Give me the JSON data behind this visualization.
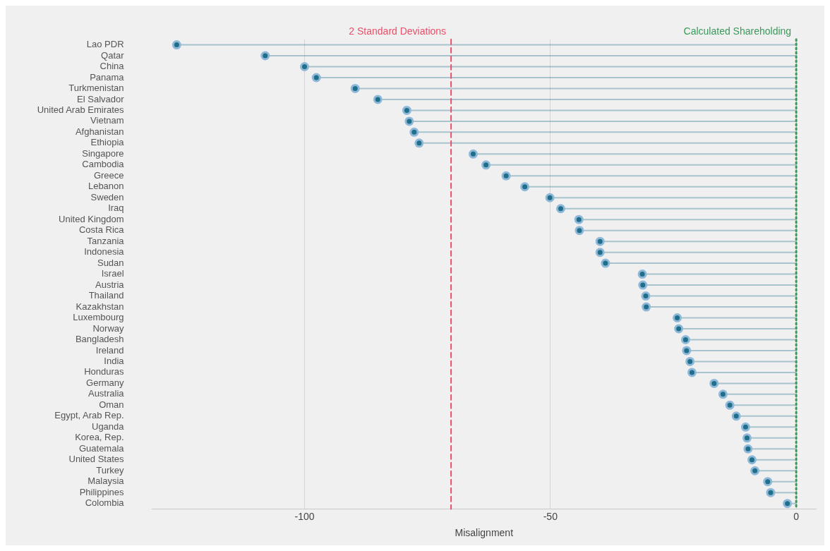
{
  "chart_data": {
    "type": "lollipop",
    "orientation": "horizontal",
    "xlabel": "Misalignment",
    "categories": [
      "Lao PDR",
      "Qatar",
      "China",
      "Panama",
      "Turkmenistan",
      "El Salvador",
      "United Arab Emirates",
      "Vietnam",
      "Afghanistan",
      "Ethiopia",
      "Singapore",
      "Cambodia",
      "Greece",
      "Lebanon",
      "Sweden",
      "Iraq",
      "United Kingdom",
      "Costa Rica",
      "Tanzania",
      "Indonesia",
      "Sudan",
      "Israel",
      "Austria",
      "Thailand",
      "Kazakhstan",
      "Luxembourg",
      "Norway",
      "Bangladesh",
      "Ireland",
      "India",
      "Honduras",
      "Germany",
      "Australia",
      "Oman",
      "Egypt, Arab Rep.",
      "Uganda",
      "Korea, Rep.",
      "Guatemala",
      "United States",
      "Turkey",
      "Malaysia",
      "Philippines",
      "Colombia"
    ],
    "series": [
      {
        "color": "#1f6f8b",
        "values": [
          -126,
          -108,
          -100,
          -97.6,
          -89.7,
          -85.1,
          -79.2,
          -78.7,
          -77.7,
          -76.7,
          -65.7,
          -63.1,
          -59,
          -55.2,
          -50.1,
          -47.9,
          -44.2,
          -44.1,
          -39.9,
          -39.9,
          -38.8,
          -31.3,
          -31.2,
          -30.6,
          -30.5,
          -24.2,
          -23.9,
          -22.5,
          -22.3,
          -21.6,
          -21.2,
          -16.7,
          -14.9,
          -13.5,
          -12.2,
          -10.3,
          -10,
          -9.8,
          -9,
          -8.4,
          -5.8,
          -5.2,
          -1.8
        ]
      }
    ],
    "xlim": [
      -131,
      4
    ],
    "xticks": [
      -100,
      -50,
      0
    ],
    "grid": "x",
    "marker": "circle",
    "legend": false,
    "ref_lines": [
      {
        "axis": "x",
        "value": -70.2,
        "label": "2 Standard Deviations",
        "color": "#e8506a",
        "line_style": "dashed"
      },
      {
        "axis": "x",
        "value": 0,
        "label": "Calculated Shareholding",
        "color": "#3a9a5a",
        "line_style": "dotted"
      }
    ]
  }
}
